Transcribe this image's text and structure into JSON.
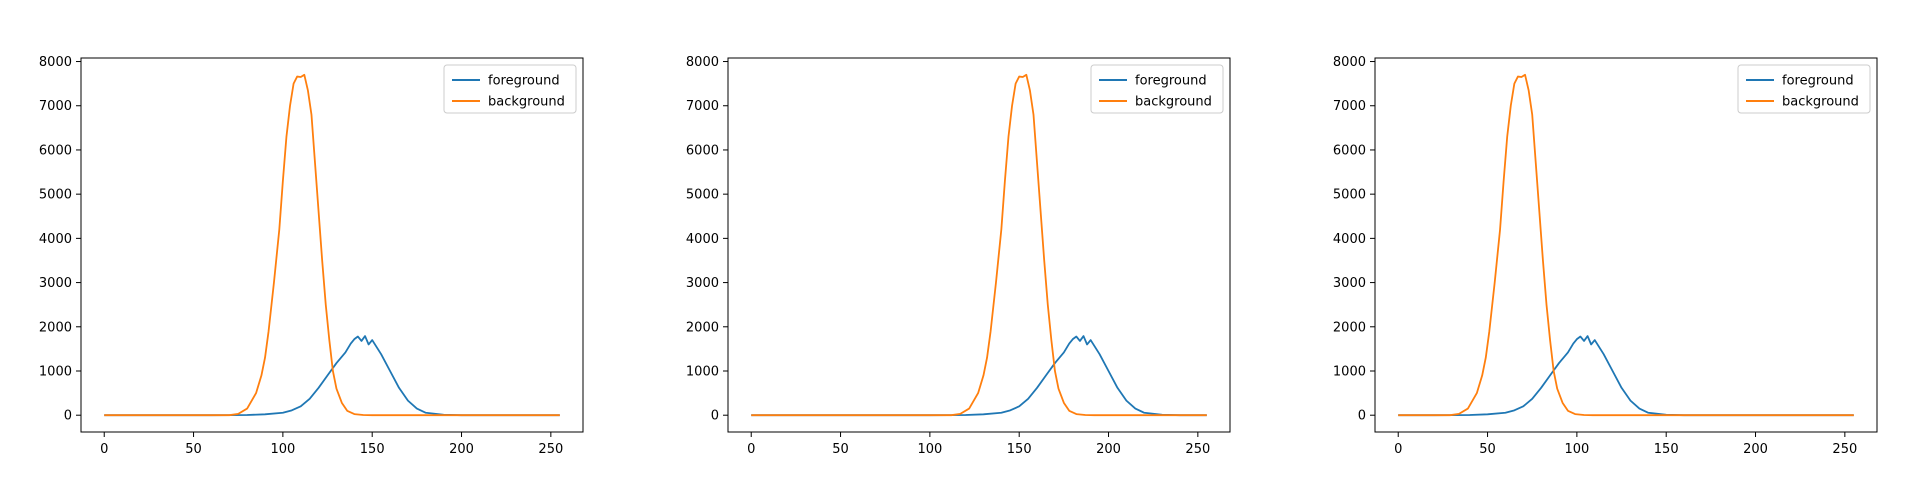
{
  "chart_data": [
    {
      "type": "line",
      "xlim": [
        -13,
        268
      ],
      "ylim": [
        -380,
        8080
      ],
      "xticks": [
        0,
        50,
        100,
        150,
        200,
        250
      ],
      "yticks": [
        0,
        1000,
        2000,
        3000,
        4000,
        5000,
        6000,
        7000,
        8000
      ],
      "legend_position": "top-right",
      "series": [
        {
          "name": "foreground",
          "color": "#1f77b4",
          "x": [
            0,
            60,
            80,
            90,
            100,
            105,
            110,
            115,
            120,
            125,
            130,
            135,
            138,
            140,
            142,
            144,
            146,
            148,
            150,
            155,
            160,
            165,
            170,
            175,
            180,
            190,
            200,
            255
          ],
          "y": [
            0,
            0,
            5,
            20,
            55,
            110,
            200,
            370,
            620,
            900,
            1180,
            1420,
            1620,
            1720,
            1780,
            1680,
            1790,
            1600,
            1700,
            1380,
            1000,
            620,
            330,
            150,
            55,
            10,
            0,
            0
          ]
        },
        {
          "name": "background",
          "color": "#ff7f0e",
          "x": [
            0,
            70,
            75,
            80,
            85,
            88,
            90,
            92,
            95,
            98,
            100,
            102,
            104,
            106,
            108,
            110,
            112,
            114,
            116,
            118,
            120,
            122,
            124,
            126,
            128,
            130,
            133,
            136,
            140,
            145,
            150,
            160,
            255
          ],
          "y": [
            0,
            0,
            30,
            150,
            500,
            900,
            1300,
            1900,
            3000,
            4200,
            5300,
            6300,
            7000,
            7500,
            7660,
            7650,
            7700,
            7350,
            6800,
            5700,
            4600,
            3500,
            2500,
            1700,
            1000,
            600,
            280,
            100,
            25,
            5,
            0,
            0,
            0
          ]
        }
      ]
    },
    {
      "type": "line",
      "xlim": [
        -13,
        268
      ],
      "ylim": [
        -380,
        8080
      ],
      "xticks": [
        0,
        50,
        100,
        150,
        200,
        250
      ],
      "yticks": [
        0,
        1000,
        2000,
        3000,
        4000,
        5000,
        6000,
        7000,
        8000
      ],
      "legend_position": "top-right",
      "series": [
        {
          "name": "foreground",
          "color": "#1f77b4",
          "x": [
            0,
            100,
            120,
            130,
            140,
            145,
            150,
            155,
            160,
            165,
            170,
            175,
            178,
            180,
            182,
            184,
            186,
            188,
            190,
            195,
            200,
            205,
            210,
            215,
            220,
            230,
            240,
            255
          ],
          "y": [
            0,
            0,
            5,
            20,
            55,
            110,
            200,
            370,
            620,
            900,
            1180,
            1420,
            1620,
            1720,
            1780,
            1680,
            1790,
            1600,
            1700,
            1380,
            1000,
            620,
            330,
            150,
            55,
            10,
            0,
            0
          ]
        },
        {
          "name": "background",
          "color": "#ff7f0e",
          "x": [
            0,
            112,
            117,
            122,
            127,
            130,
            132,
            134,
            137,
            140,
            142,
            144,
            146,
            148,
            150,
            152,
            154,
            156,
            158,
            160,
            162,
            164,
            166,
            168,
            170,
            172,
            175,
            178,
            182,
            187,
            192,
            200,
            255
          ],
          "y": [
            0,
            0,
            30,
            150,
            500,
            900,
            1300,
            1900,
            3000,
            4200,
            5300,
            6300,
            7000,
            7500,
            7660,
            7650,
            7700,
            7350,
            6800,
            5700,
            4600,
            3500,
            2500,
            1700,
            1000,
            600,
            280,
            100,
            25,
            5,
            0,
            0,
            0
          ]
        }
      ]
    },
    {
      "type": "line",
      "xlim": [
        -13,
        268
      ],
      "ylim": [
        -380,
        8080
      ],
      "xticks": [
        0,
        50,
        100,
        150,
        200,
        250
      ],
      "yticks": [
        0,
        1000,
        2000,
        3000,
        4000,
        5000,
        6000,
        7000,
        8000
      ],
      "legend_position": "top-right",
      "series": [
        {
          "name": "foreground",
          "color": "#1f77b4",
          "x": [
            0,
            20,
            40,
            50,
            60,
            65,
            70,
            75,
            80,
            85,
            90,
            95,
            98,
            100,
            102,
            104,
            106,
            108,
            110,
            115,
            120,
            125,
            130,
            135,
            140,
            150,
            160,
            255
          ],
          "y": [
            0,
            0,
            5,
            20,
            55,
            110,
            200,
            370,
            620,
            900,
            1180,
            1420,
            1620,
            1720,
            1780,
            1680,
            1790,
            1600,
            1700,
            1380,
            1000,
            620,
            330,
            150,
            55,
            10,
            0,
            0
          ]
        },
        {
          "name": "background",
          "color": "#ff7f0e",
          "x": [
            0,
            29,
            34,
            39,
            44,
            47,
            49,
            51,
            54,
            57,
            59,
            61,
            63,
            65,
            67,
            69,
            71,
            73,
            75,
            77,
            79,
            81,
            83,
            85,
            87,
            89,
            92,
            95,
            99,
            104,
            109,
            120,
            255
          ],
          "y": [
            0,
            0,
            30,
            150,
            500,
            900,
            1300,
            1900,
            3000,
            4200,
            5300,
            6300,
            7000,
            7500,
            7660,
            7650,
            7700,
            7350,
            6800,
            5700,
            4600,
            3500,
            2500,
            1700,
            1000,
            600,
            280,
            100,
            25,
            5,
            0,
            0,
            0
          ]
        }
      ]
    }
  ]
}
